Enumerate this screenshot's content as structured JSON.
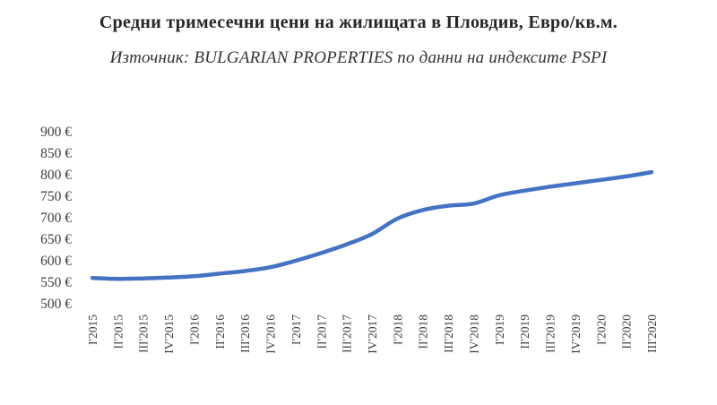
{
  "chart_data": {
    "type": "line",
    "title": "Средни тримесечни цени на жилищата в Пловдив, Евро/кв.м.",
    "subtitle": "Източник: BULGARIAN PROPERTIES по данни на индексите PSPI",
    "categories": [
      "I'2015",
      "II'2015",
      "III'2015",
      "IV'2015",
      "I'2016",
      "II'2016",
      "III'2016",
      "IV'2016",
      "I'2017",
      "II'2017",
      "III'2017",
      "IV'2017",
      "I'2018",
      "II'2018",
      "III'2018",
      "IV'2018",
      "I'2019",
      "II'2019",
      "III'2019",
      "IV'2019",
      "I'2020",
      "II'2020",
      "III'2020"
    ],
    "values": [
      560,
      558,
      559,
      561,
      564,
      570,
      576,
      585,
      600,
      618,
      638,
      662,
      698,
      718,
      728,
      733,
      752,
      763,
      772,
      780,
      788,
      796,
      806
    ],
    "xlabel": "",
    "ylabel": "",
    "ylim": [
      500,
      900
    ],
    "yticks": [
      500,
      550,
      600,
      650,
      700,
      750,
      800,
      850,
      900
    ],
    "ytick_suffix": " €",
    "grid": false,
    "legend": "none",
    "line_color": "#4472C4",
    "tick_color": "#3f3f3f"
  }
}
